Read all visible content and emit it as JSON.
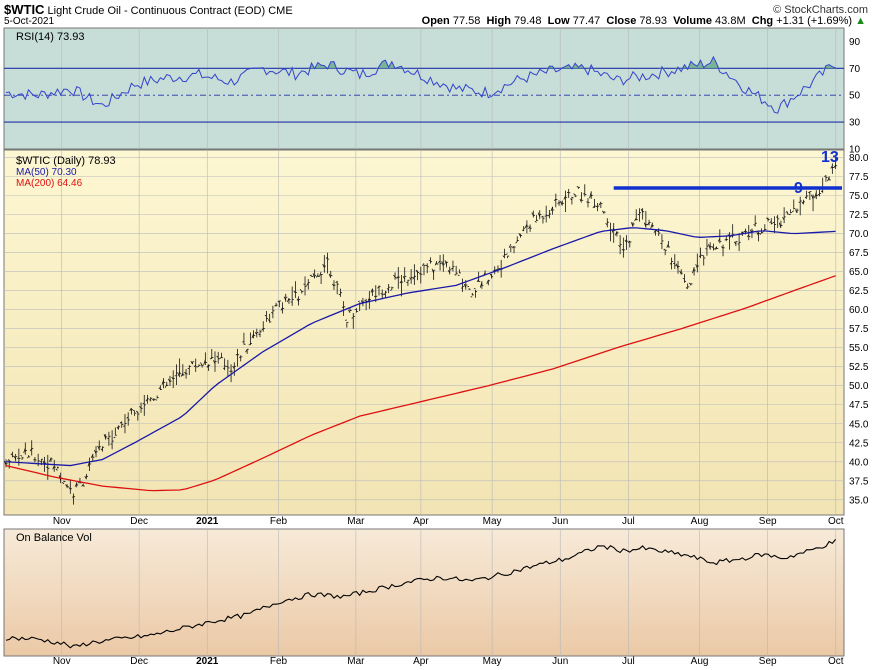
{
  "header": {
    "symbol": "$WTIC",
    "name": "Light Crude Oil - Continuous Contract (EOD)",
    "exchange": "CME",
    "date": "5-Oct-2021",
    "open_label": "Open",
    "open": "77.58",
    "high_label": "High",
    "high": "79.48",
    "low_label": "Low",
    "low": "77.47",
    "close_label": "Close",
    "close": "78.93",
    "volume_label": "Volume",
    "volume": "43.8M",
    "chg_label": "Chg",
    "chg": "+1.31 (+1.69%)",
    "chg_arrow": "▲",
    "credit": "© StockCharts.com"
  },
  "colors": {
    "rsi_bg": "#c7ddd7",
    "price_bg_top": "#fdf7d2",
    "price_bg_bottom": "#f2e4b3",
    "obv_bg_top": "#f7ead8",
    "obv_bg_bottom": "#ebc9a6",
    "ma50": "#1a1aaa",
    "ma200": "#dd1111",
    "rsi_line": "#3344cc",
    "trendline": "#1030d0",
    "annotation": "#1030d0"
  },
  "legend": {
    "price": "$WTIC (Daily) 78.93",
    "ma50": "MA(50) 70.30",
    "ma200": "MA(200) 64.46",
    "rsi": "RSI(14) 73.93",
    "obv": "On Balance Vol"
  },
  "annotations": {
    "count_9": "9",
    "count_13": "13"
  },
  "chart_data": [
    {
      "type": "line",
      "panel": "rsi",
      "title": "RSI(14) 73.93",
      "ylim": [
        10,
        100
      ],
      "y_ticks": [
        "90",
        "70",
        "50",
        "30",
        "10"
      ],
      "reference_lines": [
        30,
        50,
        70
      ],
      "series": [
        {
          "name": "RSI(14)",
          "x_days": [
            0,
            10,
            20,
            30,
            40,
            50,
            60,
            70,
            80,
            90,
            100,
            110,
            120,
            130,
            140,
            150,
            160,
            170,
            180,
            190,
            200,
            210,
            220,
            230,
            240,
            250,
            258
          ],
          "values": [
            52,
            50,
            55,
            42,
            58,
            63,
            65,
            60,
            70,
            66,
            73,
            65,
            75,
            64,
            55,
            52,
            62,
            68,
            70,
            61,
            65,
            70,
            75,
            55,
            40,
            58,
            74
          ]
        }
      ]
    },
    {
      "type": "line",
      "panel": "price",
      "title": "$WTIC (Daily) 78.93",
      "ylim": [
        33,
        81
      ],
      "y_ticks": [
        "80.0",
        "77.5",
        "75.0",
        "72.5",
        "70.0",
        "67.5",
        "65.0",
        "62.5",
        "60.0",
        "57.5",
        "55.0",
        "52.5",
        "50.0",
        "47.5",
        "45.0",
        "42.5",
        "40.0",
        "37.5",
        "35.0"
      ],
      "x_ticks": [
        "Nov",
        "Dec",
        "2021",
        "Feb",
        "Mar",
        "Apr",
        "May",
        "Jun",
        "Jul",
        "Aug",
        "Sep",
        "Oct"
      ],
      "series": [
        {
          "name": "$WTIC (Daily)",
          "x_days": [
            0,
            8,
            15,
            21,
            24,
            28,
            35,
            42,
            50,
            57,
            64,
            70,
            78,
            85,
            92,
            100,
            106,
            112,
            118,
            125,
            130,
            137,
            145,
            155,
            162,
            170,
            177,
            185,
            192,
            197,
            205,
            212,
            218,
            225,
            232,
            240,
            247,
            252,
            258
          ],
          "values": [
            40.2,
            41.0,
            39.5,
            35.8,
            37.5,
            41.0,
            44.5,
            47.5,
            50.0,
            52.5,
            53.5,
            52.5,
            57.0,
            60.5,
            62.0,
            66.5,
            59.0,
            61.5,
            63.0,
            64.5,
            65.5,
            66.0,
            62.5,
            66.5,
            71.0,
            73.5,
            75.5,
            74.0,
            67.5,
            73.0,
            68.5,
            62.5,
            68.5,
            69.0,
            70.5,
            71.5,
            74.0,
            75.5,
            78.93
          ]
        },
        {
          "name": "MA(50)",
          "x_days": [
            0,
            20,
            30,
            40,
            55,
            65,
            80,
            95,
            110,
            125,
            140,
            155,
            170,
            185,
            195,
            205,
            215,
            225,
            235,
            245,
            258
          ],
          "values": [
            40.0,
            39.5,
            40.3,
            42.5,
            46.0,
            50.0,
            54.5,
            58.2,
            60.8,
            62.2,
            63.2,
            65.5,
            68.0,
            70.3,
            70.8,
            70.4,
            69.5,
            69.7,
            70.4,
            70.0,
            70.3
          ]
        },
        {
          "name": "MA(200)",
          "x_days": [
            0,
            15,
            30,
            45,
            55,
            65,
            80,
            95,
            110,
            130,
            150,
            170,
            190,
            210,
            230,
            245,
            258
          ],
          "values": [
            39.5,
            38.0,
            36.8,
            36.2,
            36.3,
            37.6,
            40.5,
            43.5,
            46.0,
            48.0,
            50.0,
            52.2,
            55.0,
            57.5,
            60.2,
            62.5,
            64.46
          ]
        }
      ]
    },
    {
      "type": "line",
      "panel": "obv",
      "title": "On Balance Vol",
      "series": [
        {
          "name": "On Balance Vol",
          "x_days": [
            0,
            10,
            18,
            21,
            26,
            35,
            45,
            55,
            65,
            75,
            85,
            95,
            105,
            115,
            125,
            135,
            145,
            155,
            165,
            175,
            185,
            192,
            198,
            205,
            212,
            220,
            228,
            235,
            242,
            250,
            258
          ],
          "values": [
            10,
            9,
            5,
            2,
            6,
            9,
            12,
            18,
            24,
            29,
            40,
            46,
            44,
            50,
            56,
            60,
            57,
            63,
            70,
            76,
            86,
            82,
            84,
            81,
            78,
            72,
            75,
            79,
            76,
            82,
            90
          ]
        }
      ]
    }
  ]
}
